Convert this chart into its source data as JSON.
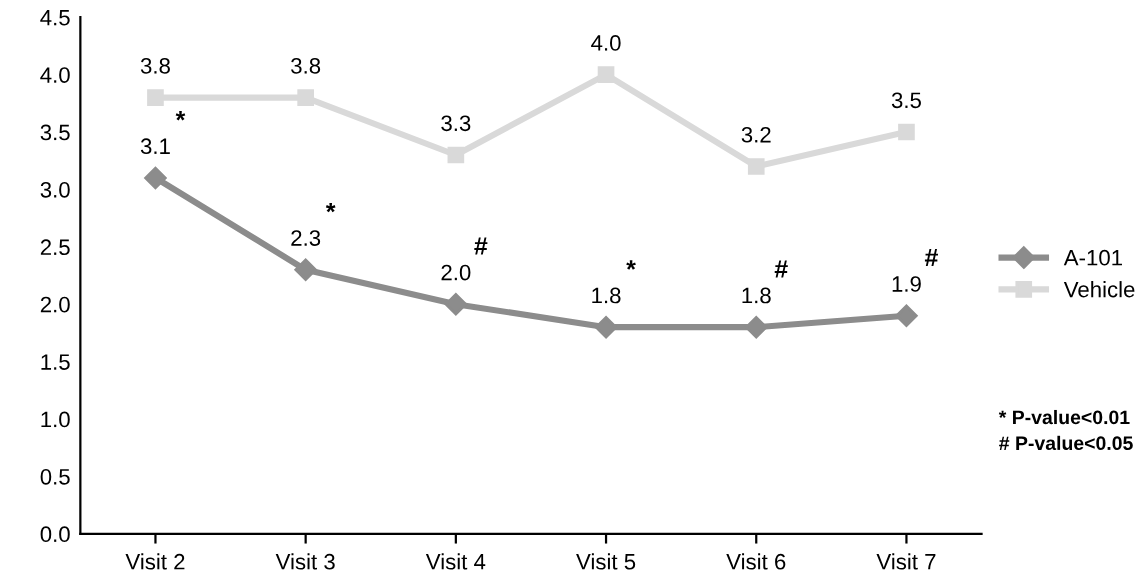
{
  "chart_data": {
    "type": "line",
    "categories": [
      "Visit 2",
      "Visit 3",
      "Visit 4",
      "Visit 5",
      "Visit 6",
      "Visit 7"
    ],
    "series": [
      {
        "name": "A-101",
        "color": "#8c8c8c",
        "marker": "diamond",
        "values": [
          3.1,
          2.3,
          2.0,
          1.8,
          1.8,
          1.9
        ],
        "value_labels": [
          "3.1",
          "2.3",
          "2.0",
          "1.8",
          "1.8",
          "1.9"
        ]
      },
      {
        "name": "Vehicle",
        "color": "#d9d9d9",
        "marker": "square",
        "values": [
          3.8,
          3.8,
          3.3,
          4.0,
          3.2,
          3.5
        ],
        "value_labels": [
          "3.8",
          "3.8",
          "3.3",
          "4.0",
          "3.2",
          "3.5"
        ]
      }
    ],
    "ylim": [
      0,
      4.5
    ],
    "yticks": [
      "0.0",
      "0.5",
      "1.0",
      "1.5",
      "2.0",
      "2.5",
      "3.0",
      "3.5",
      "4.0",
      "4.5"
    ],
    "grid": false,
    "legend": "right",
    "line_style": "solid",
    "annotations": [
      {
        "text": "*",
        "x": "Visit 2",
        "y": 3.1
      },
      {
        "text": "*",
        "x": "Visit 3",
        "y": 2.3
      },
      {
        "text": "#",
        "x": "Visit 4",
        "y": 2.0
      },
      {
        "text": "*",
        "x": "Visit 5",
        "y": 1.8
      },
      {
        "text": "#",
        "x": "Visit 6",
        "y": 1.8
      },
      {
        "text": "#",
        "x": "Visit 7",
        "y": 1.9
      },
      "* P-value<0.01",
      "# P-value<0.05"
    ]
  }
}
